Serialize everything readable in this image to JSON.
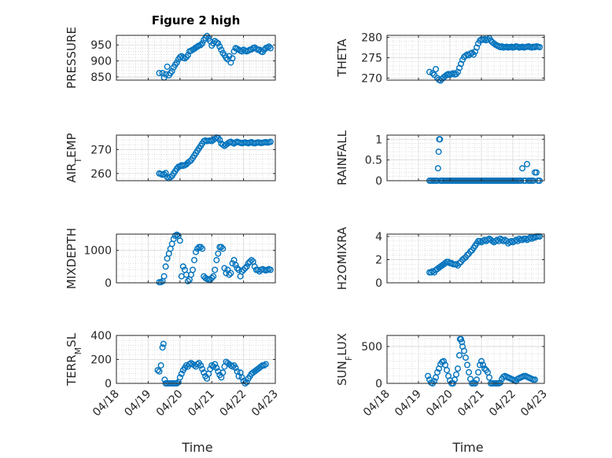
{
  "figure": {
    "title": "Figure 2 high",
    "xlabel": "Time"
  },
  "chart_data": [
    {
      "id": "pressure",
      "type": "scatter",
      "ylabel": "PRESSURE",
      "title": "Figure 2 high",
      "xlim": [
        "04/18",
        "04/23"
      ],
      "ylim": [
        840,
        980
      ],
      "xticks": [
        "04/18",
        "04/19",
        "04/20",
        "04/21",
        "04/22",
        "04/23"
      ],
      "yticks": [
        850,
        900,
        950
      ],
      "x": [
        19.35,
        19.45,
        19.5,
        19.55,
        19.6,
        19.65,
        19.7,
        19.75,
        19.8,
        19.85,
        19.9,
        19.95,
        20.0,
        20.05,
        20.1,
        20.15,
        20.2,
        20.25,
        20.3,
        20.35,
        20.4,
        20.45,
        20.5,
        20.55,
        20.6,
        20.65,
        20.7,
        20.75,
        20.8,
        20.85,
        20.9,
        20.95,
        21.0,
        21.05,
        21.1,
        21.15,
        21.2,
        21.25,
        21.3,
        21.35,
        21.4,
        21.45,
        21.5,
        21.55,
        21.6,
        21.65,
        21.7,
        21.75,
        21.8,
        21.85,
        21.9,
        21.95,
        22.0,
        22.05,
        22.1,
        22.15,
        22.2,
        22.25,
        22.3,
        22.35,
        22.4,
        22.45,
        22.5,
        22.55,
        22.6,
        22.65,
        22.7,
        22.75,
        22.8,
        22.85
      ],
      "y": [
        862,
        862,
        848,
        858,
        882,
        855,
        862,
        868,
        880,
        888,
        895,
        905,
        912,
        915,
        910,
        908,
        912,
        918,
        930,
        932,
        935,
        938,
        942,
        945,
        948,
        950,
        955,
        965,
        972,
        978,
        970,
        962,
        948,
        955,
        962,
        958,
        955,
        945,
        935,
        925,
        918,
        910,
        905,
        915,
        895,
        908,
        930,
        940,
        938,
        935,
        932,
        930,
        935,
        932,
        930,
        932,
        935,
        936,
        940,
        942,
        938,
        935,
        935,
        930,
        928,
        935,
        940,
        942,
        945,
        940
      ]
    },
    {
      "id": "theta",
      "type": "scatter",
      "ylabel": "THETA",
      "xlim": [
        "04/18",
        "04/23"
      ],
      "ylim": [
        269.5,
        280.5
      ],
      "xticks": [
        "04/18",
        "04/19",
        "04/20",
        "04/21",
        "04/22",
        "04/23"
      ],
      "yticks": [
        270,
        275,
        280
      ],
      "x": [
        19.35,
        19.45,
        19.5,
        19.55,
        19.6,
        19.65,
        19.7,
        19.75,
        19.8,
        19.85,
        19.9,
        19.95,
        20.0,
        20.05,
        20.1,
        20.15,
        20.2,
        20.25,
        20.3,
        20.35,
        20.4,
        20.45,
        20.5,
        20.55,
        20.6,
        20.65,
        20.7,
        20.75,
        20.8,
        20.85,
        20.9,
        20.95,
        21.0,
        21.05,
        21.1,
        21.15,
        21.2,
        21.25,
        21.3,
        21.35,
        21.4,
        21.45,
        21.5,
        21.55,
        21.6,
        21.65,
        21.7,
        21.75,
        21.8,
        21.85,
        21.9,
        21.95,
        22.0,
        22.05,
        22.1,
        22.15,
        22.2,
        22.25,
        22.3,
        22.35,
        22.4,
        22.45,
        22.5,
        22.55,
        22.6,
        22.65,
        22.7,
        22.75,
        22.8,
        22.85
      ],
      "y": [
        271.5,
        271.2,
        270.8,
        272.2,
        270.0,
        269.6,
        269.4,
        269.8,
        270.2,
        270.5,
        270.8,
        271.0,
        270.8,
        271.0,
        271.2,
        270.9,
        271.0,
        271.5,
        272.5,
        273.5,
        274.5,
        275.2,
        275.5,
        275.8,
        275.6,
        276.0,
        276.2,
        275.8,
        276.5,
        277.5,
        278.5,
        279.2,
        279.5,
        279.4,
        279.6,
        279.3,
        279.5,
        279.8,
        279.2,
        278.8,
        278.5,
        278.2,
        278.0,
        277.8,
        277.6,
        277.8,
        277.5,
        277.6,
        277.7,
        277.5,
        277.6,
        277.7,
        277.5,
        277.6,
        277.8,
        277.7,
        277.5,
        277.6,
        277.7,
        277.5,
        277.6,
        277.7,
        277.8,
        277.6,
        277.5,
        277.7,
        277.6,
        277.8,
        277.7,
        277.6
      ]
    },
    {
      "id": "air_temp",
      "type": "scatter",
      "ylabel": "AIR_TEMP",
      "xlim": [
        "04/18",
        "04/23"
      ],
      "ylim": [
        257,
        276
      ],
      "xticks": [
        "04/18",
        "04/19",
        "04/20",
        "04/21",
        "04/22",
        "04/23"
      ],
      "yticks": [
        260,
        270
      ],
      "x": [
        19.35,
        19.4,
        19.45,
        19.5,
        19.55,
        19.6,
        19.65,
        19.7,
        19.75,
        19.8,
        19.85,
        19.9,
        19.95,
        20.0,
        20.05,
        20.1,
        20.15,
        20.2,
        20.25,
        20.3,
        20.35,
        20.4,
        20.45,
        20.5,
        20.55,
        20.6,
        20.65,
        20.7,
        20.75,
        20.8,
        20.85,
        20.9,
        20.95,
        21.0,
        21.05,
        21.1,
        21.15,
        21.2,
        21.25,
        21.3,
        21.35,
        21.4,
        21.45,
        21.5,
        21.55,
        21.6,
        21.65,
        21.7,
        21.75,
        21.8,
        21.85,
        21.9,
        21.95,
        22.0,
        22.05,
        22.1,
        22.15,
        22.2,
        22.25,
        22.3,
        22.35,
        22.4,
        22.45,
        22.5,
        22.55,
        22.6,
        22.65,
        22.7,
        22.75,
        22.8,
        22.85
      ],
      "y": [
        260.0,
        259.8,
        259.5,
        259.7,
        260.2,
        258.5,
        258.0,
        258.5,
        259.0,
        260.0,
        261.0,
        262.0,
        262.8,
        263.0,
        263.5,
        263.2,
        263.5,
        263.8,
        264.5,
        265.0,
        265.5,
        266.5,
        267.5,
        268.5,
        269.5,
        270.5,
        271.5,
        272.5,
        273.5,
        273.8,
        273.5,
        273.6,
        273.8,
        273.5,
        274.0,
        274.5,
        275.0,
        274.8,
        274.0,
        272.5,
        272.0,
        271.5,
        272.0,
        272.5,
        273.0,
        273.2,
        272.8,
        272.5,
        273.0,
        273.2,
        273.0,
        272.8,
        272.6,
        272.8,
        273.0,
        272.8,
        272.6,
        272.9,
        273.1,
        272.7,
        272.6,
        272.8,
        273.0,
        272.9,
        272.7,
        272.8,
        273.0,
        273.1,
        272.9,
        273.0,
        273.2
      ]
    },
    {
      "id": "rainfall",
      "type": "scatter",
      "ylabel": "RAINFALL",
      "xlim": [
        "04/18",
        "04/23"
      ],
      "ylim": [
        0,
        1.1
      ],
      "xticks": [
        "04/18",
        "04/19",
        "04/20",
        "04/21",
        "04/22",
        "04/23"
      ],
      "yticks": [
        0,
        0.5,
        1
      ],
      "x": [
        19.35,
        19.4,
        19.45,
        19.5,
        19.55,
        19.6,
        19.62,
        19.64,
        19.66,
        19.68,
        19.7,
        19.72,
        19.75,
        19.8,
        19.85,
        19.9,
        19.95,
        20.0,
        20.05,
        20.1,
        20.15,
        20.2,
        20.25,
        20.3,
        20.35,
        20.4,
        20.45,
        20.5,
        20.55,
        20.6,
        20.65,
        20.7,
        20.75,
        20.8,
        20.85,
        20.9,
        20.95,
        21.0,
        21.05,
        21.1,
        21.15,
        21.2,
        21.25,
        21.3,
        21.35,
        21.4,
        21.45,
        21.5,
        21.55,
        21.6,
        21.65,
        21.7,
        21.75,
        21.8,
        21.85,
        21.9,
        21.95,
        22.0,
        22.05,
        22.1,
        22.15,
        22.2,
        22.25,
        22.3,
        22.35,
        22.4,
        22.45,
        22.5,
        22.55,
        22.6,
        22.65,
        22.7,
        22.75,
        22.8,
        22.85
      ],
      "y": [
        0,
        0,
        0,
        0,
        0,
        0,
        0.3,
        0.7,
        1.0,
        1.0,
        0,
        0,
        0,
        0,
        0,
        0,
        0,
        0,
        0,
        0,
        0,
        0,
        0,
        0,
        0,
        0,
        0,
        0,
        0,
        0,
        0,
        0,
        0,
        0,
        0,
        0,
        0,
        0,
        0,
        0,
        0,
        0,
        0,
        0,
        0,
        0,
        0,
        0,
        0,
        0,
        0,
        0,
        0,
        0,
        0,
        0,
        0,
        0,
        0,
        0,
        0,
        0,
        0,
        0.3,
        0,
        0,
        0.4,
        0,
        0,
        0,
        0,
        0.2,
        0.2,
        0,
        0
      ]
    },
    {
      "id": "mixdepth",
      "type": "scatter",
      "ylabel": "MIXDEPTH",
      "xlim": [
        "04/18",
        "04/23"
      ],
      "ylim": [
        0,
        1500
      ],
      "xticks": [
        "04/18",
        "04/19",
        "04/20",
        "04/21",
        "04/22",
        "04/23"
      ],
      "yticks": [
        0,
        1000
      ],
      "x": [
        19.35,
        19.4,
        19.45,
        19.5,
        19.55,
        19.6,
        19.65,
        19.7,
        19.75,
        19.8,
        19.85,
        19.9,
        19.95,
        20.0,
        20.05,
        20.1,
        20.15,
        20.2,
        20.25,
        20.3,
        20.35,
        20.4,
        20.45,
        20.5,
        20.55,
        20.6,
        20.65,
        20.7,
        20.75,
        20.8,
        20.85,
        20.9,
        20.95,
        21.0,
        21.05,
        21.1,
        21.15,
        21.2,
        21.25,
        21.3,
        21.35,
        21.4,
        21.45,
        21.5,
        21.55,
        21.6,
        21.65,
        21.7,
        21.75,
        21.8,
        21.85,
        21.9,
        21.95,
        22.0,
        22.05,
        22.1,
        22.15,
        22.2,
        22.25,
        22.3,
        22.35,
        22.4,
        22.45,
        22.5,
        22.55,
        22.6,
        22.65,
        22.7,
        22.75,
        22.8,
        22.85
      ],
      "y": [
        20,
        20,
        50,
        200,
        500,
        750,
        900,
        1050,
        1200,
        1350,
        1450,
        1480,
        1450,
        1300,
        200,
        500,
        400,
        250,
        50,
        100,
        250,
        400,
        700,
        950,
        1050,
        1100,
        1100,
        1050,
        200,
        150,
        120,
        100,
        100,
        150,
        200,
        400,
        700,
        900,
        1100,
        1100,
        1050,
        450,
        300,
        400,
        250,
        300,
        600,
        700,
        550,
        450,
        400,
        200,
        350,
        400,
        450,
        500,
        600,
        650,
        700,
        650,
        500,
        400,
        400,
        350,
        400,
        420,
        400,
        380,
        400,
        420,
        400
      ]
    },
    {
      "id": "h2omixra",
      "type": "scatter",
      "ylabel": "H2OMIXRA",
      "xlim": [
        "04/18",
        "04/23"
      ],
      "ylim": [
        0,
        4.2
      ],
      "xticks": [
        "04/18",
        "04/19",
        "04/20",
        "04/21",
        "04/22",
        "04/23"
      ],
      "yticks": [
        0,
        2,
        4
      ],
      "x": [
        19.35,
        19.4,
        19.45,
        19.5,
        19.55,
        19.6,
        19.65,
        19.7,
        19.75,
        19.8,
        19.85,
        19.9,
        19.95,
        20.0,
        20.05,
        20.1,
        20.15,
        20.2,
        20.25,
        20.3,
        20.35,
        20.4,
        20.45,
        20.5,
        20.55,
        20.6,
        20.65,
        20.7,
        20.75,
        20.8,
        20.85,
        20.9,
        20.95,
        21.0,
        21.05,
        21.1,
        21.15,
        21.2,
        21.25,
        21.3,
        21.35,
        21.4,
        21.45,
        21.5,
        21.55,
        21.6,
        21.65,
        21.7,
        21.75,
        21.8,
        21.85,
        21.9,
        21.95,
        22.0,
        22.05,
        22.1,
        22.15,
        22.2,
        22.25,
        22.3,
        22.35,
        22.4,
        22.45,
        22.5,
        22.55,
        22.6,
        22.65,
        22.7,
        22.75,
        22.8,
        22.85
      ],
      "y": [
        0.9,
        0.9,
        1.0,
        0.9,
        1.1,
        1.2,
        1.3,
        1.4,
        1.5,
        1.6,
        1.7,
        1.8,
        1.8,
        1.7,
        1.7,
        1.6,
        1.6,
        1.6,
        1.5,
        1.7,
        1.8,
        2.0,
        2.1,
        2.2,
        2.4,
        2.5,
        2.7,
        2.8,
        3.0,
        3.2,
        3.4,
        3.6,
        3.6,
        3.5,
        3.6,
        3.7,
        3.6,
        3.7,
        3.8,
        3.7,
        3.6,
        3.5,
        3.6,
        3.7,
        3.6,
        3.8,
        3.7,
        3.6,
        3.7,
        3.6,
        3.4,
        3.5,
        3.6,
        3.5,
        3.6,
        3.7,
        3.6,
        3.8,
        3.7,
        3.7,
        3.8,
        3.8,
        3.7,
        3.8,
        3.9,
        3.8,
        3.9,
        3.9,
        4.0,
        4.0,
        4.0
      ]
    },
    {
      "id": "terr_msl",
      "type": "scatter",
      "ylabel": "TERR_MSL",
      "xlim": [
        "04/18",
        "04/23"
      ],
      "ylim": [
        0,
        400
      ],
      "xticks": [
        "04/18",
        "04/19",
        "04/20",
        "04/21",
        "04/22",
        "04/23"
      ],
      "yticks": [
        0,
        200,
        400
      ],
      "x": [
        19.3,
        19.35,
        19.4,
        19.45,
        19.48,
        19.52,
        19.55,
        19.6,
        19.65,
        19.7,
        19.75,
        19.8,
        19.85,
        19.9,
        19.95,
        20.0,
        20.05,
        20.1,
        20.15,
        20.2,
        20.25,
        20.3,
        20.35,
        20.4,
        20.45,
        20.5,
        20.55,
        20.6,
        20.65,
        20.7,
        20.75,
        20.8,
        20.85,
        20.9,
        20.95,
        21.0,
        21.05,
        21.1,
        21.15,
        21.2,
        21.25,
        21.3,
        21.35,
        21.4,
        21.45,
        21.5,
        21.55,
        21.6,
        21.65,
        21.7,
        21.75,
        21.8,
        21.85,
        21.9,
        21.95,
        22.0,
        22.05,
        22.1,
        22.15,
        22.2,
        22.25,
        22.3,
        22.35,
        22.4,
        22.45,
        22.5,
        22.55,
        22.6,
        22.65,
        22.7
      ],
      "y": [
        110,
        100,
        150,
        300,
        330,
        30,
        0,
        0,
        0,
        0,
        0,
        0,
        0,
        0,
        10,
        50,
        80,
        110,
        130,
        150,
        140,
        160,
        170,
        160,
        150,
        140,
        160,
        170,
        150,
        120,
        90,
        60,
        40,
        80,
        120,
        150,
        140,
        160,
        130,
        100,
        70,
        50,
        90,
        140,
        180,
        170,
        160,
        150,
        140,
        150,
        130,
        100,
        60,
        90,
        50,
        20,
        0,
        10,
        40,
        60,
        80,
        90,
        100,
        110,
        120,
        130,
        140,
        150,
        150,
        160
      ]
    },
    {
      "id": "sun_flux",
      "type": "scatter",
      "ylabel": "SUN_FLUX",
      "xlim": [
        "04/18",
        "04/23"
      ],
      "ylim": [
        0,
        650
      ],
      "xticks": [
        "04/18",
        "04/19",
        "04/20",
        "04/21",
        "04/22",
        "04/23"
      ],
      "yticks": [
        0,
        500
      ],
      "x": [
        19.3,
        19.35,
        19.4,
        19.45,
        19.5,
        19.55,
        19.6,
        19.65,
        19.7,
        19.75,
        19.8,
        19.85,
        19.9,
        19.95,
        20.0,
        20.05,
        20.1,
        20.15,
        20.2,
        20.25,
        20.3,
        20.32,
        20.35,
        20.38,
        20.4,
        20.45,
        20.5,
        20.55,
        20.6,
        20.65,
        20.7,
        20.75,
        20.8,
        20.85,
        20.9,
        20.95,
        21.0,
        21.05,
        21.1,
        21.15,
        21.2,
        21.25,
        21.3,
        21.35,
        21.4,
        21.45,
        21.5,
        21.55,
        21.6,
        21.65,
        21.7,
        21.75,
        21.8,
        21.85,
        21.9,
        21.95,
        22.0,
        22.05,
        22.1,
        22.15,
        22.2,
        22.25,
        22.3,
        22.35,
        22.4,
        22.45,
        22.5,
        22.55,
        22.6,
        22.65,
        22.7
      ],
      "y": [
        100,
        50,
        10,
        0,
        30,
        80,
        150,
        200,
        260,
        290,
        300,
        250,
        180,
        100,
        40,
        0,
        0,
        50,
        120,
        200,
        380,
        600,
        600,
        560,
        500,
        440,
        350,
        250,
        150,
        60,
        0,
        0,
        0,
        50,
        150,
        250,
        300,
        250,
        200,
        180,
        150,
        80,
        0,
        0,
        0,
        0,
        0,
        0,
        10,
        60,
        90,
        100,
        90,
        80,
        70,
        60,
        50,
        40,
        30,
        60,
        70,
        80,
        90,
        100,
        100,
        90,
        80,
        70,
        60,
        50,
        50
      ]
    }
  ]
}
